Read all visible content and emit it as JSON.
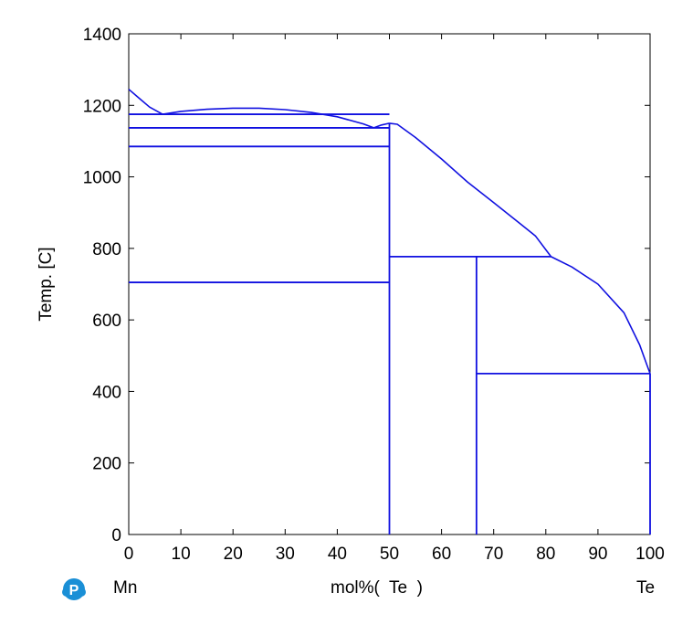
{
  "chart_data": {
    "type": "line",
    "title": "",
    "xlabel": "mol%(  Te  )",
    "ylabel": "Temp.  [C]",
    "xlim": [
      0,
      100
    ],
    "ylim": [
      0,
      1400
    ],
    "xticks": [
      0,
      10,
      20,
      30,
      40,
      50,
      60,
      70,
      80,
      90,
      100
    ],
    "yticks": [
      0,
      200,
      400,
      600,
      800,
      1000,
      1200,
      1400
    ],
    "grid": false,
    "line_color": "#1010e0",
    "left_component": "Mn",
    "right_component": "Te",
    "curves": [
      {
        "points": [
          [
            0,
            1245
          ],
          [
            2,
            1220
          ],
          [
            4,
            1195
          ],
          [
            6.5,
            1175
          ]
        ]
      },
      {
        "points": [
          [
            6.5,
            1175
          ],
          [
            10,
            1183
          ],
          [
            15,
            1189
          ],
          [
            20,
            1192
          ],
          [
            25,
            1192
          ],
          [
            30,
            1188
          ],
          [
            35,
            1180
          ],
          [
            40,
            1168
          ],
          [
            45,
            1148
          ],
          [
            47,
            1137
          ]
        ]
      },
      {
        "points": [
          [
            47,
            1137
          ],
          [
            48.5,
            1145
          ],
          [
            50,
            1150
          ]
        ]
      },
      {
        "points": [
          [
            50,
            1150
          ],
          [
            51.5,
            1147
          ],
          [
            55,
            1110
          ],
          [
            60,
            1050
          ],
          [
            65,
            985
          ],
          [
            70,
            928
          ],
          [
            75,
            870
          ],
          [
            78,
            835
          ],
          [
            81,
            777
          ]
        ]
      },
      {
        "points": [
          [
            81,
            777
          ],
          [
            85,
            748
          ],
          [
            90,
            700
          ],
          [
            95,
            620
          ],
          [
            98,
            530
          ],
          [
            99.5,
            470
          ],
          [
            100,
            450
          ]
        ]
      }
    ],
    "horizontal_lines": [
      {
        "x": [
          0,
          50
        ],
        "y": 1175
      },
      {
        "x": [
          0,
          50
        ],
        "y": 1137
      },
      {
        "x": [
          0,
          50
        ],
        "y": 1085
      },
      {
        "x": [
          0,
          50
        ],
        "y": 705
      },
      {
        "x": [
          50,
          81
        ],
        "y": 777
      },
      {
        "x": [
          66.7,
          100
        ],
        "y": 450
      }
    ],
    "vertical_lines": [
      {
        "x": 50,
        "y": [
          0,
          1150
        ]
      },
      {
        "x": 66.7,
        "y": [
          0,
          777
        ]
      },
      {
        "x": 100,
        "y": [
          0,
          450
        ]
      }
    ]
  }
}
